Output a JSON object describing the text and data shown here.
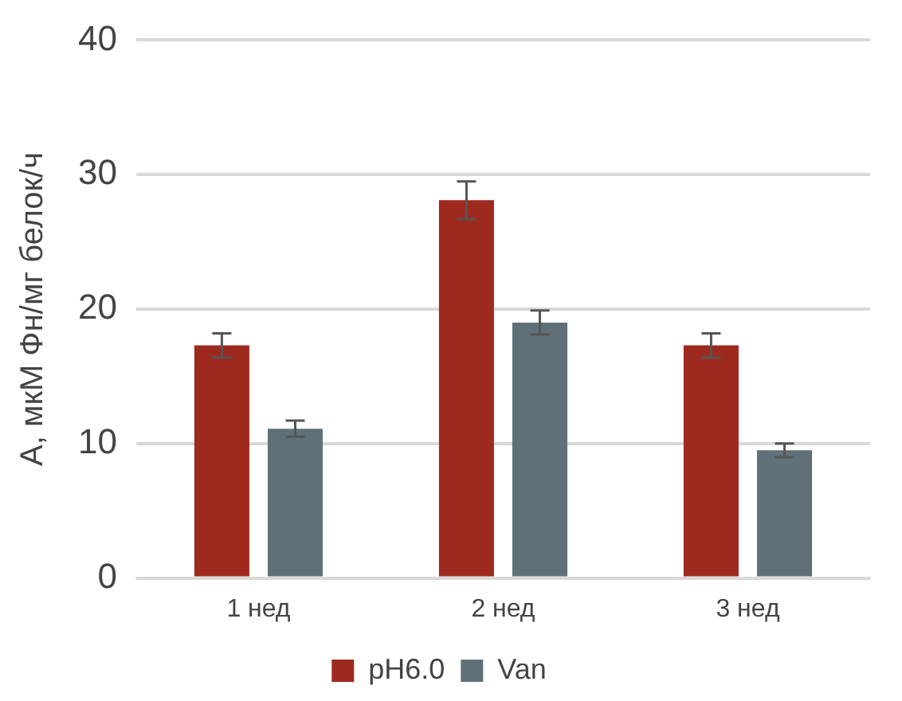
{
  "chart_data": {
    "type": "bar",
    "ylabel": "А, мкМ Фн/мг белок/ч",
    "categories": [
      "1 нед",
      "2 нед",
      "3 нед"
    ],
    "series": [
      {
        "name": "pH6.0",
        "color": "#9e2a1f",
        "values": [
          17.3,
          28.1,
          17.3
        ],
        "errors": [
          0.9,
          1.4,
          0.9
        ]
      },
      {
        "name": "Van",
        "color": "#5f7078",
        "values": [
          11.1,
          19.0,
          9.5
        ],
        "errors": [
          0.6,
          0.9,
          0.5
        ]
      }
    ],
    "ylim": [
      0,
      40
    ],
    "yticks": [
      0,
      10,
      20,
      30,
      40
    ],
    "grid": "y",
    "legend": "bottom"
  }
}
